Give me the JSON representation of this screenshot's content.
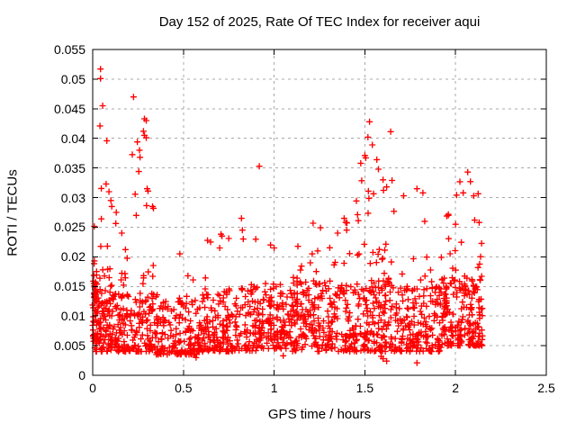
{
  "title": "Day 152 of 2025, Rate Of TEC Index for receiver aqui",
  "x_axis": {
    "label": "GPS time / hours",
    "min": 0,
    "max": 2.5,
    "ticks": [
      0,
      0.5,
      1,
      1.5,
      2,
      2.5
    ],
    "tick_labels": [
      "0",
      "0.5",
      "1",
      "1.5",
      "2",
      "2.5"
    ],
    "grid": "dashed"
  },
  "y_axis": {
    "label": "ROTI / TECUs",
    "min": 0,
    "max": 0.055,
    "ticks": [
      0,
      0.005,
      0.01,
      0.015,
      0.02,
      0.025,
      0.03,
      0.035,
      0.04,
      0.045,
      0.05,
      0.055
    ],
    "tick_labels": [
      "0",
      "0.005",
      "0.01",
      "0.015",
      "0.02",
      "0.025",
      "0.03",
      "0.035",
      "0.04",
      "0.045",
      "0.05",
      "0.055"
    ],
    "grid": "dashed"
  },
  "colors": {
    "marker": "#ff0000",
    "grid": "#a8a8a8",
    "border": "#000000",
    "background": "#ffffff",
    "text": "#000000"
  },
  "chart_data": {
    "type": "scatter",
    "marker": "plus",
    "series_name": "ROTI",
    "x_data_range": [
      0,
      2.15
    ],
    "seed": 152,
    "outliers": [
      [
        0.043,
        0.0517
      ],
      [
        0.043,
        0.0501
      ],
      [
        0.04,
        0.0421
      ],
      [
        0.055,
        0.0455
      ],
      [
        0.078,
        0.0396
      ],
      [
        0.074,
        0.0323
      ],
      [
        0.09,
        0.031
      ],
      [
        0.1,
        0.0295
      ],
      [
        0.105,
        0.0285
      ],
      [
        0.13,
        0.0275
      ],
      [
        0.225,
        0.047
      ],
      [
        0.285,
        0.0433
      ],
      [
        0.295,
        0.043
      ],
      [
        0.28,
        0.0412
      ],
      [
        0.285,
        0.0405
      ],
      [
        0.295,
        0.0401
      ],
      [
        0.246,
        0.0394
      ],
      [
        0.258,
        0.038
      ],
      [
        0.261,
        0.0368
      ],
      [
        0.254,
        0.0344
      ],
      [
        0.3,
        0.0315
      ],
      [
        0.305,
        0.0311
      ],
      [
        0.33,
        0.0285
      ],
      [
        0.335,
        0.0282
      ],
      [
        0.24,
        0.027
      ],
      [
        0.48,
        0.0205
      ],
      [
        0.65,
        0.0225
      ],
      [
        0.713,
        0.0235
      ],
      [
        0.7,
        0.0215
      ],
      [
        0.82,
        0.0265
      ],
      [
        0.825,
        0.0245
      ],
      [
        0.83,
        0.023
      ],
      [
        0.918,
        0.0353
      ],
      [
        0.98,
        0.022
      ],
      [
        1.0,
        0.0215
      ],
      [
        1.21,
        0.0205
      ],
      [
        1.24,
        0.021
      ],
      [
        1.35,
        0.024
      ],
      [
        1.386,
        0.0265
      ],
      [
        1.395,
        0.0258
      ],
      [
        1.4,
        0.0245
      ],
      [
        1.477,
        0.0358
      ],
      [
        1.5,
        0.0371
      ],
      [
        1.505,
        0.0367
      ],
      [
        1.517,
        0.0402
      ],
      [
        1.526,
        0.0428
      ],
      [
        1.541,
        0.0389
      ],
      [
        1.566,
        0.0364
      ],
      [
        1.575,
        0.0348
      ],
      [
        1.6,
        0.033
      ],
      [
        1.62,
        0.0318
      ],
      [
        1.65,
        0.0329
      ],
      [
        1.714,
        0.0303
      ],
      [
        1.787,
        0.0315
      ],
      [
        1.82,
        0.0308
      ],
      [
        1.83,
        0.026
      ],
      [
        1.96,
        0.027
      ],
      [
        2.0,
        0.0255
      ],
      [
        2.042,
        0.0308
      ],
      [
        2.067,
        0.0343
      ],
      [
        2.082,
        0.0327
      ],
      [
        2.1,
        0.0303
      ],
      [
        2.105,
        0.0262
      ],
      [
        2.13,
        0.0258
      ],
      [
        1.6,
        0.0028
      ],
      [
        1.62,
        0.0024
      ],
      [
        1.787,
        0.0021
      ],
      [
        1.59,
        0.0032
      ],
      [
        0.57,
        0.003
      ],
      [
        1.05,
        0.0033
      ]
    ],
    "cloud_segments": [
      {
        "x0": 0.0,
        "x1": 0.025,
        "n": 60,
        "y0": 0.004,
        "base": 0.012,
        "basePow": 1.5,
        "tailFrac": 0.3,
        "tail": 0.014,
        "tailPow": 2.0
      },
      {
        "x0": 0.025,
        "x1": 0.1,
        "n": 90,
        "y0": 0.004,
        "base": 0.011,
        "basePow": 1.6,
        "tailFrac": 0.25,
        "tail": 0.017,
        "tailPow": 2.2
      },
      {
        "x0": 0.1,
        "x1": 0.35,
        "n": 200,
        "y0": 0.004,
        "base": 0.01,
        "basePow": 1.7,
        "tailFrac": 0.18,
        "tail": 0.024,
        "tailPow": 2.4
      },
      {
        "x0": 0.35,
        "x1": 0.6,
        "n": 170,
        "y0": 0.0035,
        "base": 0.009,
        "basePow": 1.7,
        "tailFrac": 0.08,
        "tail": 0.01,
        "tailPow": 2.0
      },
      {
        "x0": 0.6,
        "x1": 0.9,
        "n": 220,
        "y0": 0.004,
        "base": 0.011,
        "basePow": 1.7,
        "tailFrac": 0.12,
        "tail": 0.013,
        "tailPow": 2.2
      },
      {
        "x0": 0.9,
        "x1": 1.1,
        "n": 150,
        "y0": 0.0045,
        "base": 0.011,
        "basePow": 1.7,
        "tailFrac": 0.1,
        "tail": 0.01,
        "tailPow": 2.0
      },
      {
        "x0": 1.1,
        "x1": 1.45,
        "n": 260,
        "y0": 0.004,
        "base": 0.012,
        "basePow": 1.6,
        "tailFrac": 0.2,
        "tail": 0.014,
        "tailPow": 2.0
      },
      {
        "x0": 1.45,
        "x1": 1.68,
        "n": 190,
        "y0": 0.004,
        "base": 0.012,
        "basePow": 1.6,
        "tailFrac": 0.25,
        "tail": 0.027,
        "tailPow": 2.2
      },
      {
        "x0": 1.68,
        "x1": 1.92,
        "n": 170,
        "y0": 0.004,
        "base": 0.011,
        "basePow": 1.7,
        "tailFrac": 0.12,
        "tail": 0.015,
        "tailPow": 2.2
      },
      {
        "x0": 1.92,
        "x1": 2.15,
        "n": 210,
        "y0": 0.005,
        "base": 0.012,
        "basePow": 1.6,
        "tailFrac": 0.22,
        "tail": 0.02,
        "tailPow": 2.1
      }
    ]
  }
}
